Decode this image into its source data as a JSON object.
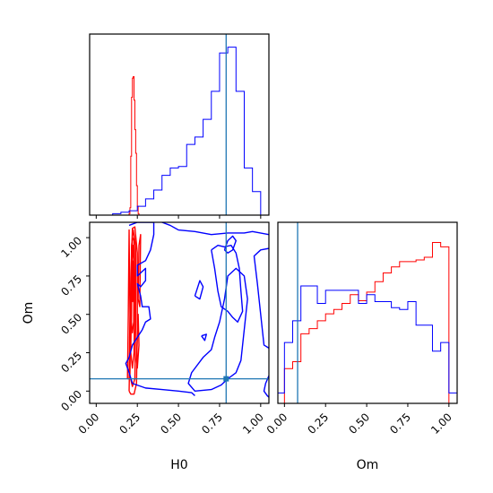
{
  "chart_data": {
    "type": "corner",
    "parameters": [
      "H0",
      "Om"
    ],
    "truth": {
      "H0": 0.79,
      "Om": 0.08
    },
    "colors": {
      "series_a": "#ff0000",
      "series_b": "#0000ff",
      "truth": "#1f77b4"
    },
    "histograms": {
      "H0": {
        "xlim": [
          -0.04,
          1.05
        ],
        "ticks": [
          "0.00",
          "0.25",
          "0.50",
          "0.75",
          "1.00"
        ],
        "series": [
          {
            "color": "#ff0000",
            "edges": [
              0.2,
              0.205,
              0.21,
              0.215,
              0.22,
              0.225,
              0.23,
              0.235,
              0.24,
              0.245,
              0.25,
              0.255,
              0.26
            ],
            "counts": [
              1,
              5,
              40,
              80,
              93,
              94,
              78,
              58,
              42,
              20,
              6,
              1
            ]
          },
          {
            "color": "#0000ff",
            "edges": [
              0.05,
              0.1,
              0.15,
              0.2,
              0.25,
              0.3,
              0.35,
              0.4,
              0.45,
              0.5,
              0.55,
              0.6,
              0.65,
              0.7,
              0.75,
              0.8,
              0.85,
              0.9,
              0.95,
              1.0
            ],
            "counts": [
              0,
              1,
              2,
              3,
              6,
              11,
              17,
              27,
              32,
              33,
              48,
              53,
              65,
              84,
              110,
              114,
              84,
              32,
              16
            ]
          }
        ]
      },
      "Om": {
        "xlim": [
          -0.04,
          1.05
        ],
        "ticks": [
          "0.00",
          "0.25",
          "0.50",
          "0.75",
          "1.00"
        ],
        "series": [
          {
            "color": "#ff0000",
            "edges": [
              -0.04,
              0.0,
              0.05,
              0.1,
              0.15,
              0.2,
              0.25,
              0.3,
              0.35,
              0.4,
              0.45,
              0.5,
              0.55,
              0.6,
              0.65,
              0.7,
              0.75,
              0.8,
              0.85,
              0.9,
              0.95,
              1.0,
              1.05
            ],
            "counts": [
              0,
              40,
              48,
              80,
              86,
              95,
              103,
              108,
              115,
              125,
              118,
              128,
              140,
              150,
              157,
              163,
              163,
              165,
              168,
              185,
              180,
              0
            ]
          },
          {
            "color": "#0000ff",
            "edges": [
              -0.04,
              0.0,
              0.05,
              0.1,
              0.15,
              0.2,
              0.25,
              0.3,
              0.35,
              0.4,
              0.45,
              0.5,
              0.55,
              0.6,
              0.65,
              0.7,
              0.75,
              0.8,
              0.85,
              0.9,
              0.95,
              1.0,
              1.05
            ],
            "counts": [
              12,
              70,
              95,
              135,
              135,
              115,
              130,
              130,
              130,
              130,
              115,
              125,
              117,
              117,
              110,
              108,
              117,
              90,
              90,
              60,
              70,
              12
            ]
          }
        ]
      }
    },
    "contours": {
      "xlim": [
        -0.04,
        1.05
      ],
      "ylim": [
        -0.08,
        1.1
      ],
      "xticks": [
        "0.00",
        "0.25",
        "0.50",
        "0.75",
        "1.00"
      ],
      "yticks": [
        "0.00",
        "0.25",
        "0.50",
        "0.75",
        "1.00"
      ],
      "xlabel": "H0",
      "ylabel": "Om",
      "series": [
        {
          "color": "#ff0000",
          "paths": [
            [
              [
                0.2,
                0.0
              ],
              [
                0.205,
                0.3
              ],
              [
                0.21,
                0.7
              ],
              [
                0.22,
                1.06
              ],
              [
                0.235,
                1.07
              ],
              [
                0.25,
                0.9
              ],
              [
                0.25,
                0.4
              ],
              [
                0.245,
                0.05
              ],
              [
                0.23,
                -0.02
              ],
              [
                0.21,
                -0.02
              ],
              [
                0.2,
                0.0
              ]
            ],
            [
              [
                0.205,
                0.1
              ],
              [
                0.21,
                0.5
              ],
              [
                0.215,
                0.95
              ],
              [
                0.225,
                1.05
              ],
              [
                0.24,
                0.95
              ],
              [
                0.24,
                0.45
              ],
              [
                0.235,
                0.08
              ],
              [
                0.22,
                0.03
              ],
              [
                0.205,
                0.1
              ]
            ],
            [
              [
                0.21,
                0.25
              ],
              [
                0.215,
                0.65
              ],
              [
                0.22,
                0.98
              ],
              [
                0.23,
                1.0
              ],
              [
                0.235,
                0.7
              ],
              [
                0.23,
                0.25
              ],
              [
                0.22,
                0.15
              ],
              [
                0.21,
                0.25
              ]
            ],
            [
              [
                0.214,
                0.45
              ],
              [
                0.218,
                0.85
              ],
              [
                0.225,
                0.95
              ],
              [
                0.23,
                0.8
              ],
              [
                0.228,
                0.45
              ],
              [
                0.22,
                0.38
              ],
              [
                0.214,
                0.45
              ]
            ],
            [
              [
                0.22,
                0.58
              ],
              [
                0.222,
                0.82
              ],
              [
                0.226,
                0.85
              ],
              [
                0.227,
                0.6
              ],
              [
                0.22,
                0.58
              ]
            ],
            [
              [
                0.19,
                0.08
              ],
              [
                0.195,
                0.5
              ],
              [
                0.2,
                1.05
              ],
              [
                0.205,
                0.5
              ],
              [
                0.2,
                0.08
              ],
              [
                0.19,
                0.08
              ]
            ],
            [
              [
                0.255,
                0.6
              ],
              [
                0.26,
                0.95
              ],
              [
                0.27,
                1.02
              ],
              [
                0.265,
                0.55
              ],
              [
                0.255,
                0.6
              ]
            ],
            [
              [
                0.245,
                0.2
              ],
              [
                0.255,
                0.5
              ],
              [
                0.26,
                0.3
              ],
              [
                0.25,
                0.15
              ],
              [
                0.245,
                0.2
              ]
            ]
          ]
        },
        {
          "color": "#0000ff",
          "paths": [
            [
              [
                0.2,
                1.08
              ],
              [
                0.25,
                1.1
              ],
              [
                0.3,
                1.1
              ],
              [
                0.35,
                1.1
              ],
              [
                0.35,
                1.02
              ],
              [
                0.33,
                0.92
              ],
              [
                0.3,
                0.85
              ],
              [
                0.25,
                0.82
              ],
              [
                0.25,
                0.75
              ],
              [
                0.3,
                0.8
              ],
              [
                0.3,
                0.72
              ],
              [
                0.27,
                0.68
              ],
              [
                0.25,
                0.7
              ],
              [
                0.27,
                0.62
              ],
              [
                0.28,
                0.55
              ],
              [
                0.32,
                0.55
              ],
              [
                0.33,
                0.47
              ],
              [
                0.3,
                0.45
              ],
              [
                0.28,
                0.4
              ],
              [
                0.25,
                0.35
              ],
              [
                0.22,
                0.3
              ],
              [
                0.2,
                0.22
              ],
              [
                0.18,
                0.18
              ],
              [
                0.2,
                0.12
              ],
              [
                0.22,
                0.05
              ],
              [
                0.3,
                0.02
              ],
              [
                0.4,
                0.01
              ],
              [
                0.5,
                0.0
              ],
              [
                0.58,
                -0.01
              ],
              [
                0.6,
                -0.03
              ]
            ],
            [
              [
                0.4,
                1.1
              ],
              [
                0.45,
                1.08
              ],
              [
                0.5,
                1.05
              ],
              [
                0.6,
                1.04
              ],
              [
                0.7,
                1.02
              ],
              [
                0.8,
                1.03
              ],
              [
                0.9,
                1.03
              ],
              [
                0.95,
                1.04
              ],
              [
                1.05,
                1.02
              ]
            ],
            [
              [
                1.05,
                0.28
              ],
              [
                1.02,
                0.3
              ],
              [
                1.0,
                0.5
              ],
              [
                0.98,
                0.7
              ],
              [
                0.96,
                0.88
              ],
              [
                1.0,
                0.92
              ],
              [
                1.05,
                0.93
              ]
            ],
            [
              [
                0.7,
                0.92
              ],
              [
                0.72,
                0.8
              ],
              [
                0.74,
                0.65
              ],
              [
                0.76,
                0.55
              ],
              [
                0.8,
                0.52
              ],
              [
                0.83,
                0.48
              ],
              [
                0.86,
                0.45
              ],
              [
                0.89,
                0.52
              ],
              [
                0.88,
                0.65
              ],
              [
                0.87,
                0.8
              ],
              [
                0.85,
                0.9
              ],
              [
                0.82,
                0.95
              ],
              [
                0.78,
                0.94
              ],
              [
                0.74,
                0.95
              ],
              [
                0.7,
                0.92
              ]
            ],
            [
              [
                0.6,
                0.62
              ],
              [
                0.63,
                0.72
              ],
              [
                0.65,
                0.68
              ],
              [
                0.63,
                0.6
              ],
              [
                0.6,
                0.62
              ]
            ],
            [
              [
                0.78,
                0.92
              ],
              [
                0.8,
                0.98
              ],
              [
                0.83,
                1.01
              ],
              [
                0.85,
                0.98
              ],
              [
                0.83,
                0.92
              ],
              [
                0.8,
                0.9
              ],
              [
                0.78,
                0.92
              ]
            ],
            [
              [
                0.64,
                0.36
              ],
              [
                0.67,
                0.37
              ],
              [
                0.66,
                0.33
              ],
              [
                0.64,
                0.36
              ]
            ],
            [
              [
                0.75,
                0.45
              ],
              [
                0.72,
                0.35
              ],
              [
                0.7,
                0.27
              ],
              [
                0.65,
                0.22
              ],
              [
                0.58,
                0.12
              ],
              [
                0.56,
                0.05
              ],
              [
                0.6,
                0.0
              ],
              [
                0.7,
                0.01
              ],
              [
                0.76,
                0.04
              ],
              [
                0.8,
                0.08
              ],
              [
                0.85,
                0.12
              ],
              [
                0.88,
                0.2
              ],
              [
                0.9,
                0.4
              ],
              [
                0.92,
                0.6
              ],
              [
                0.9,
                0.75
              ],
              [
                0.85,
                0.8
              ],
              [
                0.8,
                0.75
              ],
              [
                0.78,
                0.6
              ],
              [
                0.75,
                0.45
              ]
            ],
            [
              [
                1.05,
                0.1
              ],
              [
                1.03,
                0.05
              ],
              [
                1.02,
                0.0
              ],
              [
                1.04,
                -0.03
              ],
              [
                1.05,
                -0.04
              ]
            ]
          ]
        }
      ]
    }
  }
}
